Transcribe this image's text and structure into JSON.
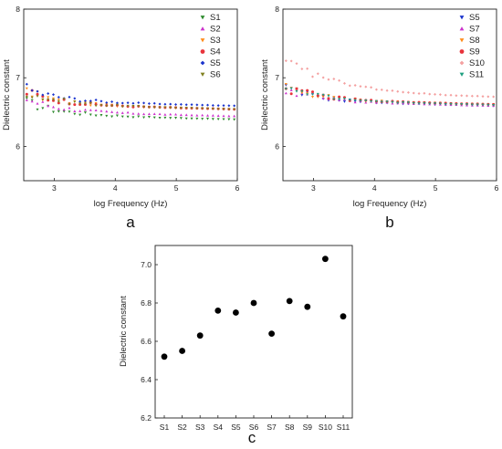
{
  "chart_data": [
    {
      "type": "scatter",
      "panel_label": "a",
      "xlabel": "log Frequency (Hz)",
      "ylabel": "Dielectric constant",
      "xlim": [
        2.5,
        6
      ],
      "ylim": [
        5.5,
        8
      ],
      "xticks": [
        3,
        4,
        5,
        6
      ],
      "yticks": [
        6,
        7,
        8
      ],
      "legend_position": "top-right",
      "series": [
        {
          "name": "S1",
          "color": "#2e8b2e",
          "base": 6.45
        },
        {
          "name": "S2",
          "color": "#cc33cc",
          "base": 6.5
        },
        {
          "name": "S3",
          "color": "#ff8c1a",
          "base": 6.6
        },
        {
          "name": "S4",
          "color": "#e8333b",
          "base": 6.6
        },
        {
          "name": "S5",
          "color": "#1a33cc",
          "base": 6.65
        },
        {
          "name": "S6",
          "color": "#808020",
          "base": 6.6
        }
      ]
    },
    {
      "type": "scatter",
      "panel_label": "b",
      "xlabel": "log Frequency (Hz)",
      "ylabel": "Dielectric constant",
      "xlim": [
        2.5,
        6
      ],
      "ylim": [
        5.5,
        8
      ],
      "xticks": [
        3,
        4,
        5,
        6
      ],
      "yticks": [
        6,
        7,
        8
      ],
      "legend_position": "top-right",
      "series": [
        {
          "name": "S5",
          "color": "#1a33cc",
          "base": 6.65
        },
        {
          "name": "S7",
          "color": "#cc33cc",
          "base": 6.65
        },
        {
          "name": "S8",
          "color": "#ff8c1a",
          "base": 6.67
        },
        {
          "name": "S9",
          "color": "#e8333b",
          "base": 6.67
        },
        {
          "name": "S10",
          "color": "#f4a0a0",
          "base": 6.7
        },
        {
          "name": "S11",
          "color": "#20a080",
          "base": 6.66
        }
      ]
    },
    {
      "type": "scatter",
      "panel_label": "c",
      "xlabel": "",
      "ylabel": "Dielectric constant",
      "ylim": [
        6.2,
        7.1
      ],
      "yticks": [
        "6.2",
        "6.4",
        "6.6",
        "6.8",
        "7.0"
      ],
      "categories": [
        "S1",
        "S2",
        "S3",
        "S4",
        "S5",
        "S6",
        "S7",
        "S8",
        "S9",
        "S10",
        "S11"
      ],
      "values": [
        6.52,
        6.55,
        6.63,
        6.76,
        6.75,
        6.8,
        6.64,
        6.81,
        6.78,
        7.03,
        6.73
      ],
      "color": "#000000"
    }
  ]
}
